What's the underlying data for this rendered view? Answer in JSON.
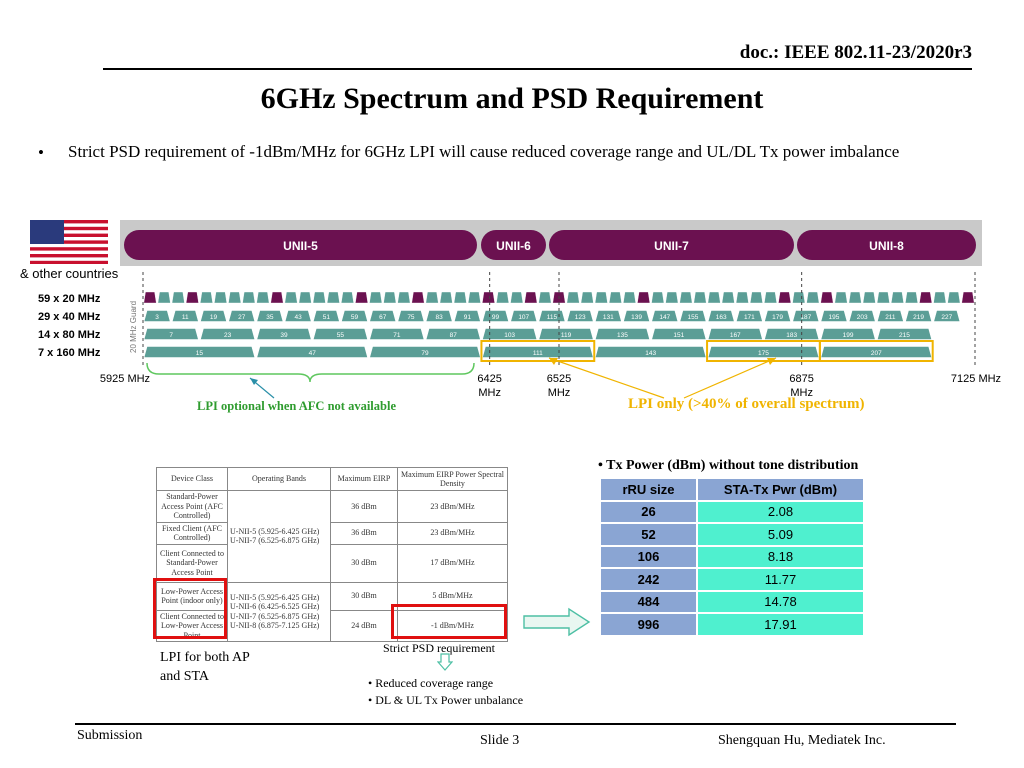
{
  "header": {
    "doc_id": "doc.: IEEE 802.11-23/2020r3"
  },
  "title": "6GHz Spectrum and PSD Requirement",
  "bullets": [
    "Strict PSD requirement of -1dBm/MHz for 6GHz LPI will cause reduced coverage range and UL/DL Tx power imbalance"
  ],
  "spectrum": {
    "region_label": "& other countries",
    "guard_label": "20 MHz Guard",
    "bands": [
      "UNII-5",
      "UNII-6",
      "UNII-7",
      "UNII-8"
    ],
    "row_labels": [
      "59 x 20 MHz",
      "29 x 40 MHz",
      "14 x 80 MHz",
      "7 x 160 MHz"
    ],
    "ch40": [
      "3",
      "11",
      "19",
      "27",
      "35",
      "43",
      "51",
      "59",
      "67",
      "75",
      "83",
      "91",
      "99",
      "107",
      "115",
      "123",
      "131",
      "139",
      "147",
      "155",
      "163",
      "171",
      "179",
      "187",
      "195",
      "203",
      "211",
      "219",
      "227"
    ],
    "ch80": [
      "7",
      "23",
      "39",
      "55",
      "71",
      "87",
      "103",
      "119",
      "135",
      "151",
      "167",
      "183",
      "199",
      "215"
    ],
    "ch160": [
      "15",
      "47",
      "79",
      "111",
      "143",
      "175",
      "207"
    ],
    "freq": {
      "f5925": "5925 MHz",
      "f6425": "6425",
      "f6525": "6525",
      "f6875": "6875",
      "f7125": "7125 MHz",
      "mhz": "MHz"
    },
    "lpi_afc_note": "LPI optional when AFC not available",
    "lpi_only_note": "LPI only (>40% of overall spectrum)"
  },
  "regulation_table": {
    "headers": [
      "Device Class",
      "Operating Bands",
      "Maximum EIRP",
      "Maximum EIRP Power Spectral Density"
    ],
    "rows": [
      {
        "device": "Standard-Power Access Point (AFC Controlled)",
        "eirp": "36 dBm",
        "psd": "23 dBm/MHz"
      },
      {
        "device": "Fixed Client (AFC Controlled)",
        "eirp": "36 dBm",
        "psd": "23 dBm/MHz"
      },
      {
        "device": "Client Connected to Standard-Power Access Point",
        "eirp": "30 dBm",
        "psd": "17 dBm/MHz"
      },
      {
        "device": "Low-Power Access Point (indoor only)",
        "eirp": "30 dBm",
        "psd": "5 dBm/MHz"
      },
      {
        "device": "Client Connected to Low-Power Access Point",
        "eirp": "24 dBm",
        "psd": "-1 dBm/MHz"
      }
    ],
    "bands_std": "U-NII-5 (5.925-6.425 GHz)\nU-NII-7 (6.525-6.875 GHz)",
    "bands_lpi": "U-NII-5 (5.925-6.425 GHz)\nU-NII-6 (6.425-6.525 GHz)\nU-NII-7 (6.525-6.875 GHz)\nU-NII-8 (6.875-7.125 GHz)",
    "strict_label": "Strict PSD requirement",
    "impacts": [
      "Reduced coverage range",
      "DL & UL Tx Power unbalance"
    ],
    "lpi_both": "LPI for both AP and STA"
  },
  "tx_power": {
    "header": "Tx Power (dBm)  without tone distribution",
    "columns": [
      "rRU size",
      "STA-Tx Pwr (dBm)"
    ],
    "rows": [
      {
        "ru": "26",
        "pwr": "2.08"
      },
      {
        "ru": "52",
        "pwr": "5.09"
      },
      {
        "ru": "106",
        "pwr": "8.18"
      },
      {
        "ru": "242",
        "pwr": "11.77"
      },
      {
        "ru": "484",
        "pwr": "14.78"
      },
      {
        "ru": "996",
        "pwr": "17.91"
      }
    ]
  },
  "footer": {
    "submission": "Submission",
    "slide": "Slide 3",
    "author": "Shengquan Hu, Mediatek Inc."
  },
  "colors": {
    "band_purple": "#6b1150",
    "channel_teal": "#5b9e96",
    "lpi_yellow": "#f0b400",
    "afc_green": "#5fc75f",
    "tx_blue": "#8aa5d3",
    "tx_teal": "#4ff0cf",
    "highlight_red": "#e01010"
  }
}
